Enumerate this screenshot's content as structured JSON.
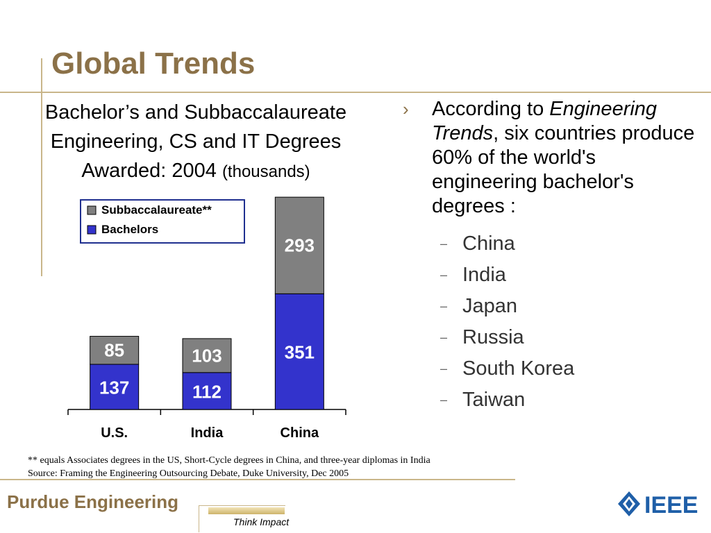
{
  "slide": {
    "title": "Global Trends",
    "chart_title_main": "Bachelor’s and Subbaccalaureate Engineering, CS and IT Degrees Awarded: 2004",
    "chart_title_unit": "(thousands)"
  },
  "chart_data": {
    "type": "bar",
    "stacked": true,
    "categories": [
      "U.S.",
      "India",
      "China"
    ],
    "series": [
      {
        "name": "Bachelors",
        "values": [
          137,
          112,
          351
        ],
        "color": "#3333CC"
      },
      {
        "name": "Subbaccalaureate**",
        "values": [
          85,
          103,
          293
        ],
        "color": "#808080"
      }
    ],
    "legend": [
      "Subbaccalaureate**",
      "Bachelors"
    ],
    "legend_position": "top-left",
    "grid": false
  },
  "bullets": {
    "marker": "›",
    "intro_before": "According to ",
    "intro_italic": "Engineering Trends",
    "intro_after": ", six countries produce 60% of the world's engineering bachelor's degrees :",
    "sub_marker": "–",
    "countries": [
      "China",
      "India",
      "Japan",
      "Russia",
      "South Korea",
      "Taiwan"
    ]
  },
  "footer": {
    "note1": "** equals Associates degrees in the US, Short-Cycle degrees in China, and three-year diplomas in India",
    "note2": "Source: Framing the Engineering Outsourcing Debate, Duke University, Dec 2005",
    "brand": "Purdue Engineering",
    "tagline": "Think Impact",
    "ieee_text": "IEEE"
  },
  "colors": {
    "accent": "#8B7148",
    "rule": "#C9B68A",
    "bachelors": "#3333CC",
    "subbacc": "#808080",
    "ieee": "#1F5FA8"
  }
}
